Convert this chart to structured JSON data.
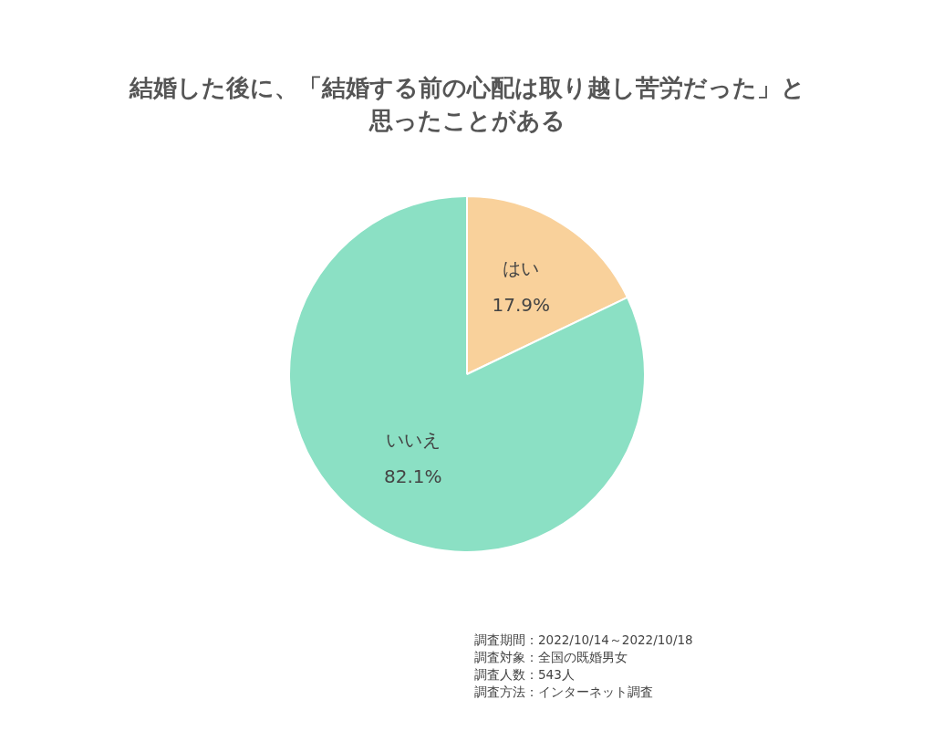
{
  "chart_data": {
    "type": "pie",
    "title": "結婚した後に、「結婚する前の心配は取り越し苦労だった」と思ったことがある",
    "categories": [
      "はい",
      "いいえ"
    ],
    "values": [
      17.9,
      82.1
    ],
    "colors": [
      "#f9d19b",
      "#8be0c4"
    ],
    "value_labels": [
      "17.9%",
      "82.1%"
    ],
    "legend": false,
    "annotations": [
      "調査期間：2022/10/14～2022/10/18",
      "調査対象：全国の既婚男女",
      "調査人数：543人",
      "調査方法：インターネット調査"
    ]
  }
}
